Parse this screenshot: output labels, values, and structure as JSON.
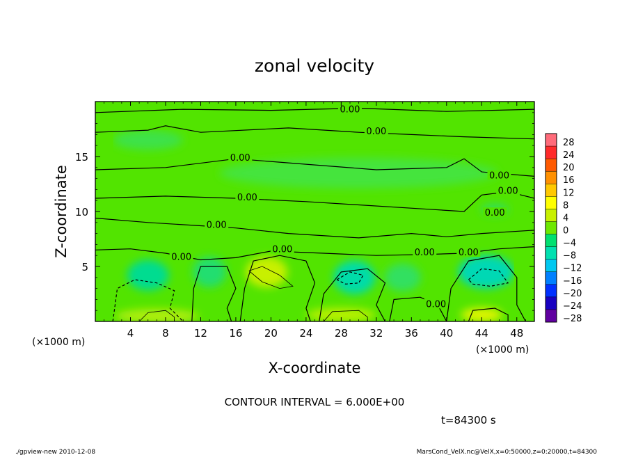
{
  "chart_data": {
    "type": "heatmap",
    "title": "zonal velocity",
    "xlabel": "X-coordinate",
    "ylabel": "Z-coordinate",
    "x_unit_left": "(×1000 m)",
    "x_unit_right": "(×1000 m)",
    "xlim": [
      0,
      50
    ],
    "ylim": [
      0,
      20
    ],
    "x_ticks": [
      4,
      8,
      12,
      16,
      20,
      24,
      28,
      32,
      36,
      40,
      44,
      48
    ],
    "y_ticks": [
      5,
      10,
      15
    ],
    "contour_label": "0.00",
    "contour_labels": [
      {
        "x": 29,
        "y": 19.2
      },
      {
        "x": 32,
        "y": 17.2
      },
      {
        "x": 16.5,
        "y": 14.8
      },
      {
        "x": 46,
        "y": 13.2
      },
      {
        "x": 47,
        "y": 11.8
      },
      {
        "x": 17.3,
        "y": 11.2
      },
      {
        "x": 13.8,
        "y": 8.7
      },
      {
        "x": 21.3,
        "y": 6.5
      },
      {
        "x": 37.5,
        "y": 6.2
      },
      {
        "x": 42.5,
        "y": 6.2
      },
      {
        "x": 9.8,
        "y": 5.8
      },
      {
        "x": 38.8,
        "y": 1.5
      },
      {
        "x": 45.5,
        "y": 9.8
      }
    ],
    "colorbar": {
      "levels": [
        28,
        24,
        20,
        16,
        12,
        8,
        4,
        0,
        -4,
        -8,
        -12,
        -16,
        -20,
        -24,
        -28
      ],
      "colors": [
        "#ff6b7a",
        "#ff2a2a",
        "#ff5a00",
        "#ff9000",
        "#ffc800",
        "#ffff00",
        "#c8f000",
        "#6ee800",
        "#00e070",
        "#00e0b0",
        "#00c8f0",
        "#0080ff",
        "#0030ff",
        "#1800c0",
        "#6000a0"
      ]
    },
    "contour_interval_text": "CONTOUR INTERVAL = 6.000E+00",
    "time_text": "t=84300 s"
  },
  "footer": {
    "left": "./gpview-new 2010-12-08",
    "right": "MarsCond_VelX.nc@VelX,x=0:50000,z=0:20000,t=84300"
  }
}
